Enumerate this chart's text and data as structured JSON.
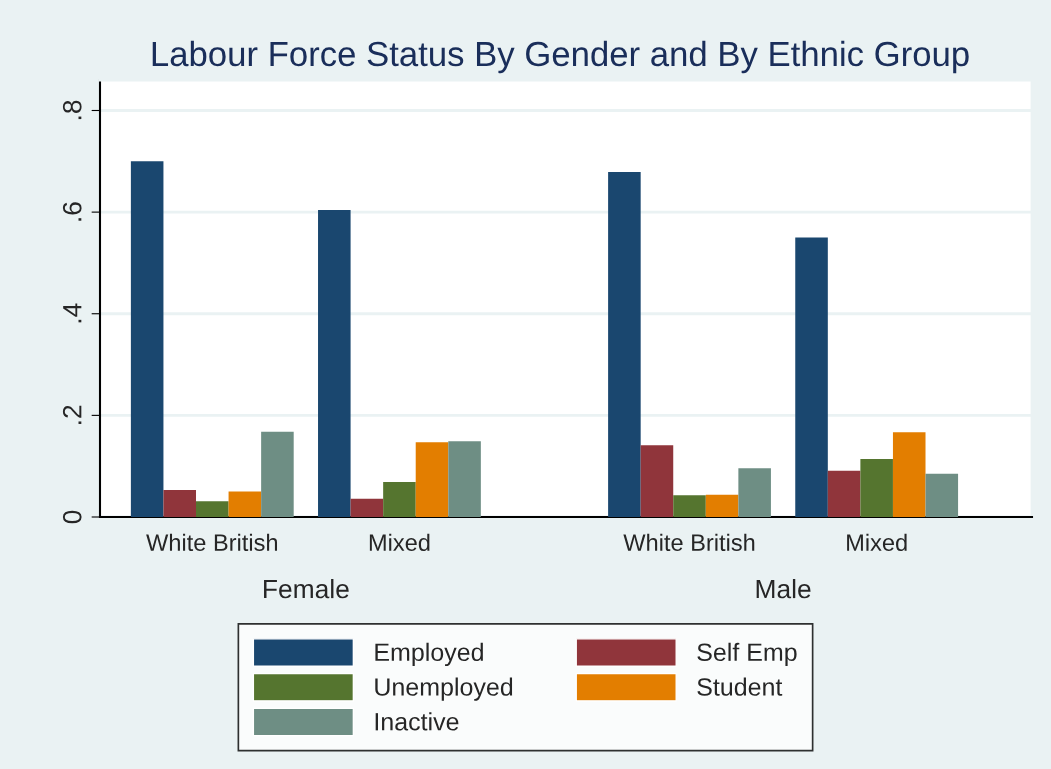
{
  "chart_data": {
    "type": "bar",
    "title": "Labour Force Status By Gender and By Ethnic Group",
    "categories": [
      "White British",
      "Mixed",
      "White British",
      "Mixed"
    ],
    "series": [
      {
        "name": "Employed",
        "color": "#1a476f",
        "values": [
          0.7,
          0.604,
          0.679,
          0.55
        ]
      },
      {
        "name": "Self Emp",
        "color": "#90353b",
        "values": [
          0.053,
          0.036,
          0.141,
          0.091
        ]
      },
      {
        "name": "Unemployed",
        "color": "#55752f",
        "values": [
          0.031,
          0.069,
          0.043,
          0.114
        ]
      },
      {
        "name": "Student",
        "color": "#e37e00",
        "values": [
          0.05,
          0.147,
          0.044,
          0.167
        ]
      },
      {
        "name": "Inactive",
        "color": "#6e8e84",
        "values": [
          0.168,
          0.149,
          0.096,
          0.085
        ]
      }
    ],
    "annotations": [
      "Female",
      "Male"
    ],
    "ylim": [
      0,
      0.86
    ],
    "yticks": [
      0,
      {
        "value": 0.2,
        "label": ".2"
      },
      {
        "value": 0.4,
        "label": ".4"
      },
      {
        "value": 0.6,
        "label": ".6"
      },
      {
        "value": 0.8,
        "label": ".8"
      }
    ],
    "grid": "y",
    "legend": "bottom"
  }
}
